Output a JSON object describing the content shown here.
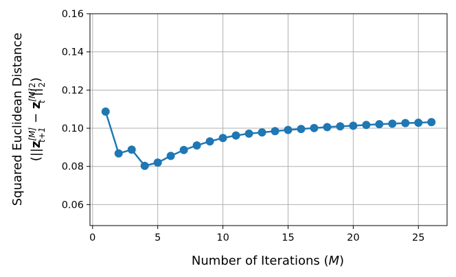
{
  "chart_data": {
    "type": "line",
    "xlabel": "Number of Iterations (M)",
    "ylabel_line1": "Squared Euclidean Distance",
    "ylabel_line2": "(||z[M]t+1 − z[M]t||²₂)",
    "xlim": [
      -0.2,
      27.2
    ],
    "ylim": [
      0.049,
      0.16
    ],
    "xticks": [
      0,
      5,
      10,
      15,
      20,
      25
    ],
    "yticks": [
      0.06,
      0.08,
      0.1,
      0.12,
      0.14,
      0.16
    ],
    "xtick_labels": [
      "0",
      "5",
      "10",
      "15",
      "20",
      "25"
    ],
    "ytick_labels": [
      "0.06",
      "0.08",
      "0.10",
      "0.12",
      "0.14",
      "0.16"
    ],
    "grid": true,
    "legend": false,
    "series": [
      {
        "color": "#1f77b4",
        "x": [
          1,
          2,
          3,
          4,
          5,
          6,
          7,
          8,
          9,
          10,
          11,
          12,
          13,
          14,
          15,
          16,
          17,
          18,
          19,
          20,
          21,
          22,
          23,
          24,
          25,
          26
        ],
        "y": [
          0.1087,
          0.0868,
          0.0888,
          0.0803,
          0.082,
          0.0855,
          0.0886,
          0.091,
          0.0931,
          0.0949,
          0.0962,
          0.0972,
          0.0978,
          0.0985,
          0.0991,
          0.0996,
          0.1001,
          0.1006,
          0.101,
          0.1013,
          0.1017,
          0.1021,
          0.1024,
          0.1027,
          0.1029,
          0.1032
        ]
      }
    ]
  }
}
